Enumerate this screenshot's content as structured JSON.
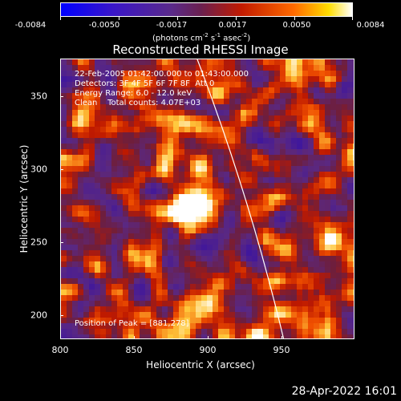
{
  "colorbar": {
    "ticks": [
      "-0.0084",
      "-0.0050",
      "-0.0017",
      "0.0017",
      "0.0050",
      "0.0084"
    ],
    "units": "(photons cm",
    "units_sup1": "-2",
    "units_mid": " s",
    "units_sup2": "-1",
    "units_end": " asec",
    "units_sup3": "-2",
    "units_close": ")"
  },
  "title": "Reconstructed RHESSI Image",
  "info": {
    "line1": "22-Feb-2005 01:42:00.000 to 01:43:00.000",
    "line2": "Detectors: 3F 4F 5F 6F 7F 8F  Att 0",
    "line3": "Energy Range: 6.0 - 12.0 keV",
    "line4": "Clean    Total counts: 4.07E+03",
    "peak": "Position of Peak = [881,278]"
  },
  "axes": {
    "xlabel": "Heliocentric X (arcsec)",
    "ylabel": "Heliocentric Y (arcsec)",
    "xticks": [
      "800",
      "850",
      "900",
      "950"
    ],
    "yticks": [
      "350",
      "300",
      "250",
      "200"
    ]
  },
  "footer": {
    "date": "28-Apr-2022 16:01"
  },
  "colors": {
    "low": "#0000ff",
    "mid_low": "#5a2a8a",
    "mid_high": "#c21a00",
    "high": "#ffffff"
  }
}
